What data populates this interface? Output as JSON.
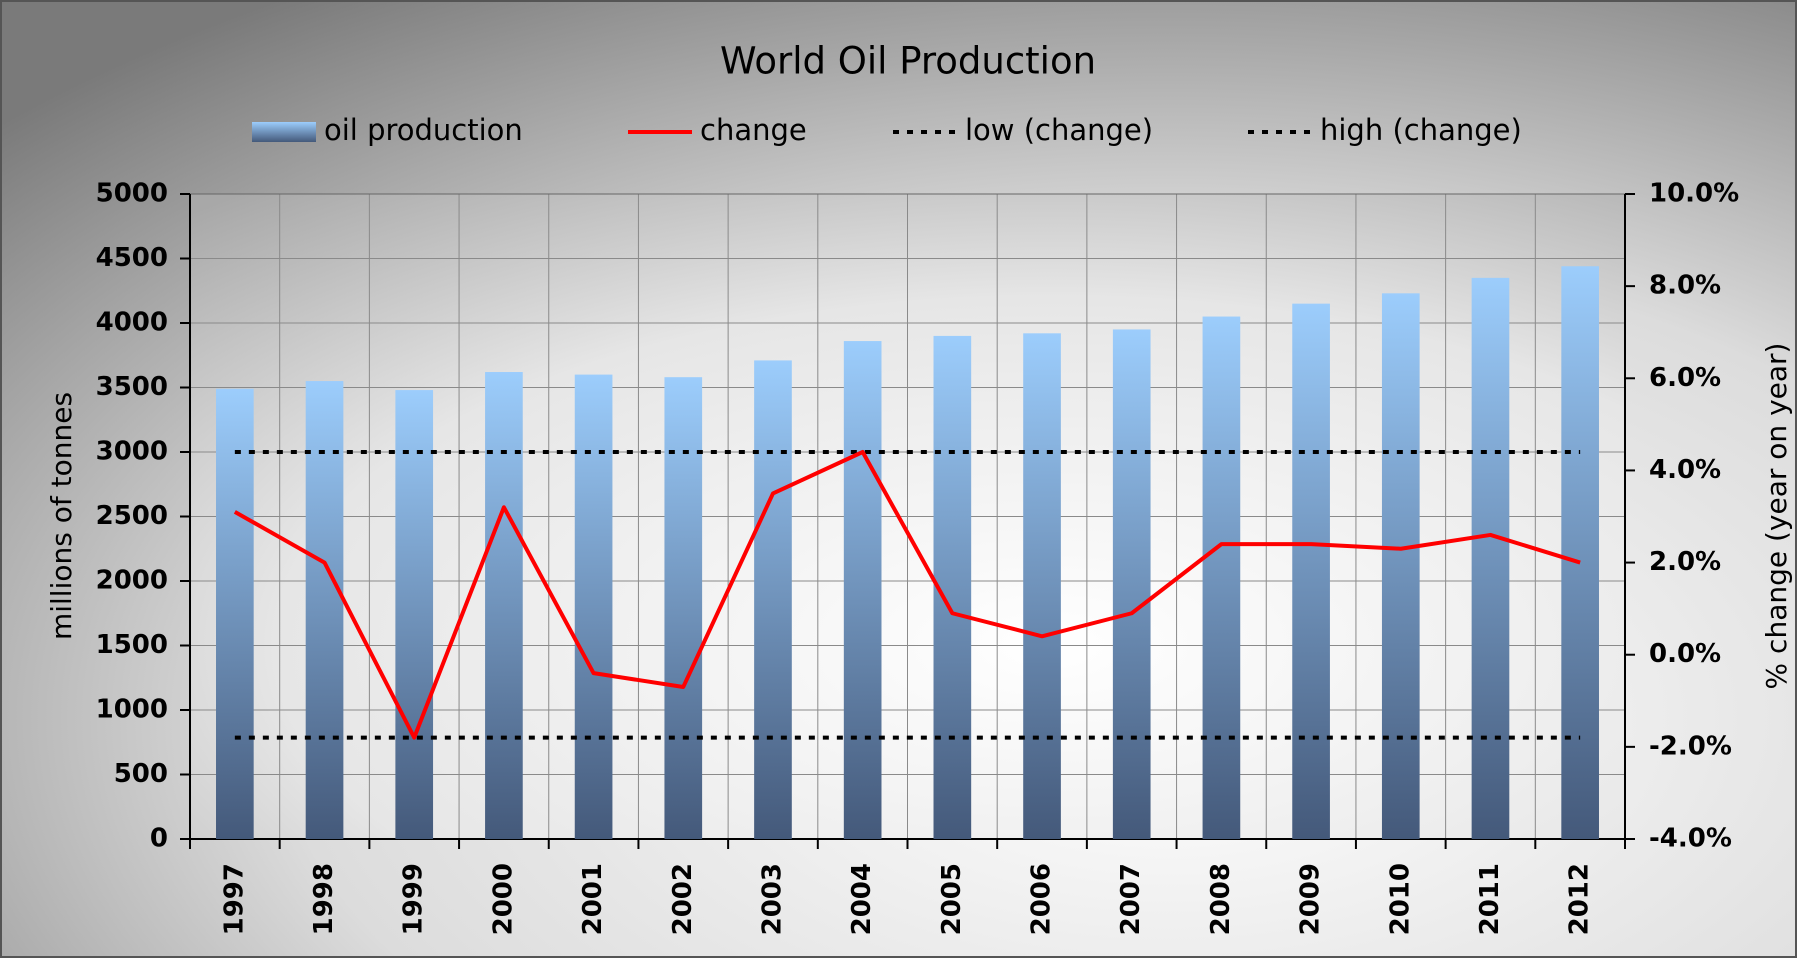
{
  "chart_data": {
    "type": "bar",
    "title": "World Oil Production",
    "categories": [
      "1997",
      "1998",
      "1999",
      "2000",
      "2001",
      "2002",
      "2003",
      "2004",
      "2005",
      "2006",
      "2007",
      "2008",
      "2009",
      "2010",
      "2011",
      "2012"
    ],
    "series": [
      {
        "name": "oil production",
        "type": "bar",
        "color": "#9ccdfc",
        "values": [
          3490,
          3550,
          3480,
          3620,
          3600,
          3580,
          3710,
          3860,
          3900,
          3920,
          3950,
          4050,
          4150,
          4230,
          4350,
          4440
        ]
      },
      {
        "name": "change",
        "type": "line",
        "axis": "y2",
        "color": "#ff0000",
        "values": [
          3.1,
          2.0,
          -1.8,
          3.2,
          -0.4,
          -0.7,
          3.5,
          4.4,
          0.9,
          0.4,
          0.9,
          2.4,
          2.4,
          2.3,
          2.6,
          2.0
        ]
      },
      {
        "name": "low (change)",
        "type": "dashed",
        "axis": "y2",
        "color": "#000000",
        "values": [
          -1.8,
          -1.8,
          -1.8,
          -1.8,
          -1.8,
          -1.8,
          -1.8,
          -1.8,
          -1.8,
          -1.8,
          -1.8,
          -1.8,
          -1.8,
          -1.8,
          -1.8,
          -1.8
        ]
      },
      {
        "name": "high (change)",
        "type": "dashed",
        "axis": "y2",
        "color": "#000000",
        "values": [
          4.4,
          4.4,
          4.4,
          4.4,
          4.4,
          4.4,
          4.4,
          4.4,
          4.4,
          4.4,
          4.4,
          4.4,
          4.4,
          4.4,
          4.4,
          4.4
        ]
      }
    ],
    "y_label": "millions of tonnes",
    "y2_label": "% change (year on year)",
    "ylim": [
      0,
      5000
    ],
    "yticks": [
      0,
      500,
      1000,
      1500,
      2000,
      2500,
      3000,
      3500,
      4000,
      4500,
      5000
    ],
    "y2lim": [
      -4,
      10
    ],
    "y2ticks": [
      {
        "value": -4,
        "label": "-4.0%"
      },
      {
        "value": -2,
        "label": "-2.0%"
      },
      {
        "value": 0,
        "label": "0.0%"
      },
      {
        "value": 2,
        "label": "2.0%"
      },
      {
        "value": 4,
        "label": "4.0%"
      },
      {
        "value": 6,
        "label": "6.0%"
      },
      {
        "value": 8,
        "label": "8.0%"
      },
      {
        "value": 10,
        "label": "10.0%"
      }
    ],
    "grid": true,
    "legend": "top"
  }
}
